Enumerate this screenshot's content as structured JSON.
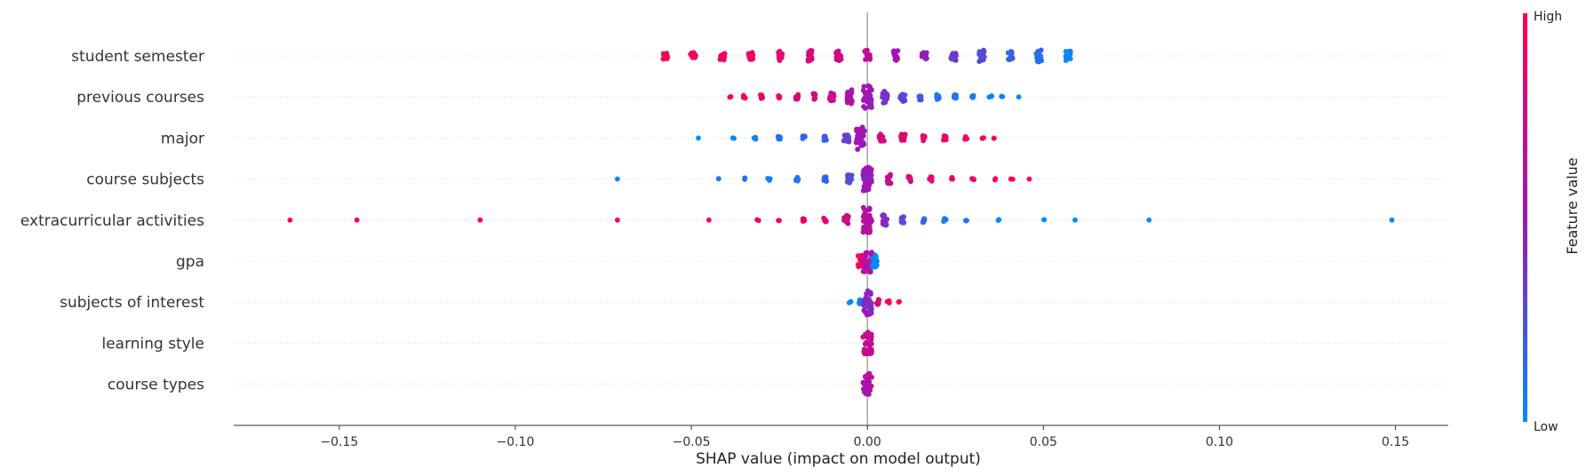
{
  "chart_data": {
    "type": "scatter",
    "subtype": "shap-beeswarm",
    "xlabel": "SHAP value (impact on model output)",
    "xlim": [
      -0.18,
      0.165
    ],
    "xticks": [
      -0.15,
      -0.1,
      -0.05,
      0.0,
      0.05,
      0.1,
      0.15
    ],
    "xtick_labels": [
      "−0.15",
      "−0.10",
      "−0.05",
      "0.00",
      "0.05",
      "0.10",
      "0.15"
    ],
    "zero_line": true,
    "row_gridlines": "dotted",
    "colors": {
      "low": "#008bfb",
      "mid": "#9d16b8",
      "high": "#ff0052"
    },
    "colorbar": {
      "title": "Feature value",
      "high_label": "High",
      "low_label": "Low"
    },
    "features": [
      {
        "name": "student semester",
        "points": [
          [
            -0.0575,
            1.0,
            0.3
          ],
          [
            -0.0495,
            0.97,
            0.3
          ],
          [
            -0.0412,
            0.93,
            0.3
          ],
          [
            -0.033,
            0.89,
            0.35
          ],
          [
            -0.0247,
            0.85,
            0.35
          ],
          [
            -0.0165,
            0.8,
            0.42
          ],
          [
            -0.0082,
            0.75,
            0.42
          ],
          [
            0.0,
            0.65,
            0.45
          ],
          [
            0.0082,
            0.55,
            0.4
          ],
          [
            0.0162,
            0.45,
            0.3
          ],
          [
            0.0245,
            0.35,
            0.35
          ],
          [
            0.0325,
            0.28,
            0.45
          ],
          [
            0.0405,
            0.2,
            0.35
          ],
          [
            0.0487,
            0.1,
            0.45
          ],
          [
            0.057,
            0.0,
            0.4
          ]
        ]
      },
      {
        "name": "previous courses",
        "points": [
          [
            -0.039,
            1.0,
            0.05
          ],
          [
            -0.035,
            0.95,
            0.12
          ],
          [
            -0.03,
            0.92,
            0.15
          ],
          [
            -0.025,
            0.9,
            0.18
          ],
          [
            -0.02,
            0.85,
            0.2
          ],
          [
            -0.015,
            0.8,
            0.25
          ],
          [
            -0.01,
            0.7,
            0.35
          ],
          [
            -0.005,
            0.6,
            0.55
          ],
          [
            0.0,
            0.5,
            0.85
          ],
          [
            0.005,
            0.4,
            0.5
          ],
          [
            0.01,
            0.3,
            0.35
          ],
          [
            0.015,
            0.2,
            0.25
          ],
          [
            0.02,
            0.12,
            0.2
          ],
          [
            0.025,
            0.08,
            0.18
          ],
          [
            0.03,
            0.05,
            0.12
          ],
          [
            0.035,
            0.02,
            0.08
          ],
          [
            0.038,
            0.0,
            0.05
          ],
          [
            0.043,
            0.0,
            0.03
          ]
        ]
      },
      {
        "name": "major",
        "points": [
          [
            -0.048,
            0.0,
            0.03
          ],
          [
            -0.038,
            0.0,
            0.05
          ],
          [
            -0.032,
            0.05,
            0.1
          ],
          [
            -0.025,
            0.1,
            0.12
          ],
          [
            -0.018,
            0.15,
            0.15
          ],
          [
            -0.012,
            0.2,
            0.2
          ],
          [
            -0.006,
            0.3,
            0.3
          ],
          [
            -0.002,
            0.5,
            0.85
          ],
          [
            0.004,
            0.75,
            0.35
          ],
          [
            0.01,
            0.85,
            0.28
          ],
          [
            0.016,
            0.9,
            0.22
          ],
          [
            0.022,
            0.95,
            0.18
          ],
          [
            0.028,
            1.0,
            0.12
          ],
          [
            0.033,
            1.0,
            0.08
          ],
          [
            0.036,
            1.0,
            0.04
          ]
        ]
      },
      {
        "name": "course subjects",
        "points": [
          [
            -0.071,
            0.0,
            0.03
          ],
          [
            -0.042,
            0.0,
            0.04
          ],
          [
            -0.035,
            0.05,
            0.08
          ],
          [
            -0.028,
            0.08,
            0.1
          ],
          [
            -0.02,
            0.1,
            0.15
          ],
          [
            -0.012,
            0.15,
            0.2
          ],
          [
            -0.005,
            0.3,
            0.3
          ],
          [
            0.0,
            0.5,
            0.9
          ],
          [
            0.006,
            0.7,
            0.35
          ],
          [
            0.012,
            0.8,
            0.25
          ],
          [
            0.018,
            0.88,
            0.18
          ],
          [
            0.024,
            0.92,
            0.12
          ],
          [
            0.03,
            0.95,
            0.1
          ],
          [
            0.036,
            1.0,
            0.06
          ],
          [
            0.041,
            1.0,
            0.04
          ],
          [
            0.046,
            1.0,
            0.03
          ]
        ]
      },
      {
        "name": "extracurricular activities",
        "points": [
          [
            -0.164,
            1.0,
            0.02
          ],
          [
            -0.145,
            1.0,
            0.02
          ],
          [
            -0.11,
            1.0,
            0.02
          ],
          [
            -0.071,
            1.0,
            0.02
          ],
          [
            -0.045,
            1.0,
            0.02
          ],
          [
            -0.031,
            0.95,
            0.04
          ],
          [
            -0.025,
            0.92,
            0.06
          ],
          [
            -0.018,
            0.9,
            0.12
          ],
          [
            -0.012,
            0.85,
            0.2
          ],
          [
            -0.006,
            0.75,
            0.35
          ],
          [
            0.0,
            0.6,
            0.95
          ],
          [
            0.005,
            0.4,
            0.4
          ],
          [
            0.01,
            0.25,
            0.25
          ],
          [
            0.016,
            0.15,
            0.18
          ],
          [
            0.022,
            0.1,
            0.12
          ],
          [
            0.028,
            0.05,
            0.08
          ],
          [
            0.037,
            0.0,
            0.04
          ],
          [
            0.05,
            0.0,
            0.04
          ],
          [
            0.059,
            0.0,
            0.02
          ],
          [
            0.08,
            0.0,
            0.02
          ],
          [
            0.149,
            0.0,
            0.02
          ]
        ]
      },
      {
        "name": "gpa",
        "points": [
          [
            -0.002,
            1.0,
            0.45
          ],
          [
            0.0,
            0.6,
            0.85
          ],
          [
            0.002,
            0.0,
            0.45
          ]
        ]
      },
      {
        "name": "subjects of interest",
        "points": [
          [
            -0.005,
            0.0,
            0.05
          ],
          [
            -0.002,
            0.05,
            0.2
          ],
          [
            0.0,
            0.45,
            1.0
          ],
          [
            0.003,
            0.85,
            0.2
          ],
          [
            0.006,
            1.0,
            0.1
          ],
          [
            0.009,
            1.0,
            0.05
          ]
        ]
      },
      {
        "name": "learning style",
        "points": [
          [
            0.0,
            0.7,
            0.85
          ]
        ]
      },
      {
        "name": "course types",
        "points": [
          [
            0.0,
            0.6,
            0.8
          ]
        ]
      }
    ]
  }
}
